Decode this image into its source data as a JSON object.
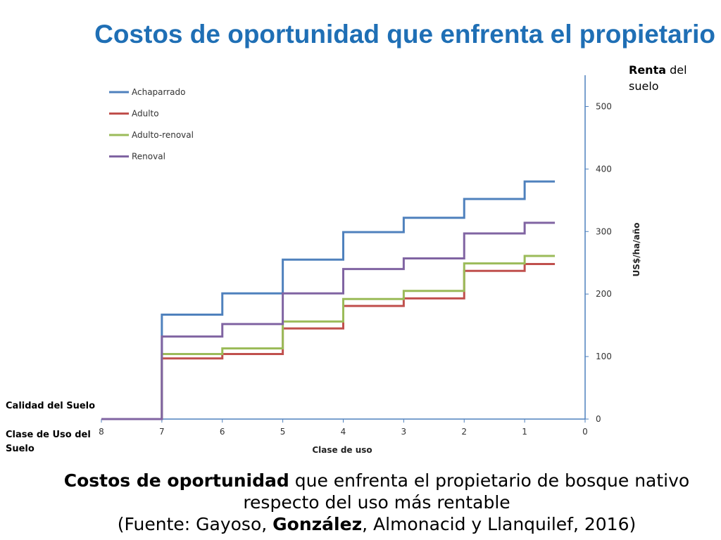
{
  "slide": {
    "title": "Costos de oportunidad que enfrenta el propietario",
    "renta_bold": "Renta",
    "renta_rest": " del suelo",
    "calidad_label": "Calidad del Suelo",
    "clase_uso_label": "Clase de Uso del Suelo",
    "caption": {
      "l1_bold": "Costos de oportunidad",
      "l1_rest": " que enfrenta el propietario de bosque nativo",
      "l2": "respecto del uso más rentable",
      "l3_a": "(Fuente: Gayoso, ",
      "l3_bold": "González",
      "l3_b": ", Almonacid y Llanquilef, 2016)"
    }
  },
  "chart_data": {
    "type": "line",
    "step": "post",
    "xlabel": "Clase de uso",
    "ylabel": "US$/ha/año",
    "x_ticks": [
      8,
      7,
      6,
      5,
      4,
      3,
      2,
      1,
      0
    ],
    "y_ticks": [
      0,
      100,
      200,
      300,
      400,
      500
    ],
    "xlim": [
      8,
      0
    ],
    "x_reversed": true,
    "ylim": [
      0,
      550
    ],
    "y_axis_side": "right",
    "grid": false,
    "legend_position": "top-left",
    "x": [
      8,
      7,
      6,
      5,
      4,
      3,
      2,
      1,
      0.5
    ],
    "series": [
      {
        "name": "Achaparrado",
        "color": "#4f81bd",
        "values": [
          0,
          167,
          201,
          255,
          299,
          322,
          352,
          380,
          380
        ]
      },
      {
        "name": "Adulto",
        "color": "#c0504d",
        "values": [
          0,
          97,
          104,
          145,
          181,
          193,
          237,
          248,
          248
        ]
      },
      {
        "name": "Adulto-renoval",
        "color": "#9bbb59",
        "values": [
          0,
          104,
          113,
          156,
          192,
          205,
          249,
          261,
          261
        ]
      },
      {
        "name": "Renoval",
        "color": "#8064a2",
        "values": [
          0,
          132,
          152,
          201,
          240,
          257,
          297,
          314,
          314
        ]
      }
    ]
  }
}
